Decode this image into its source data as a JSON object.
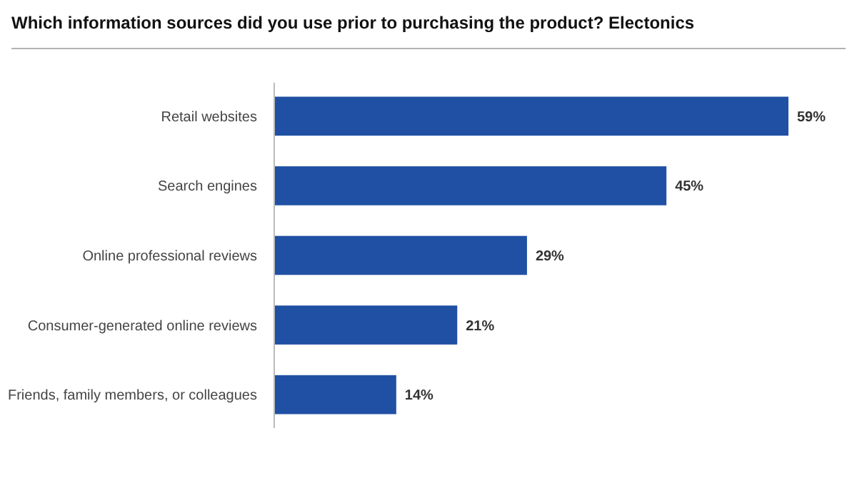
{
  "chart_data": {
    "type": "bar",
    "orientation": "horizontal",
    "title": "Which information sources did you use prior to purchasing the product? Electonics",
    "categories": [
      "Retail websites",
      "Search engines",
      "Online professional reviews",
      "Consumer-generated online reviews",
      "Friends, family members, or colleagues"
    ],
    "values": [
      59,
      45,
      29,
      21,
      14
    ],
    "value_labels": [
      "59%",
      "45%",
      "29%",
      "21%",
      "14%"
    ],
    "color": "#1f50a3"
  }
}
